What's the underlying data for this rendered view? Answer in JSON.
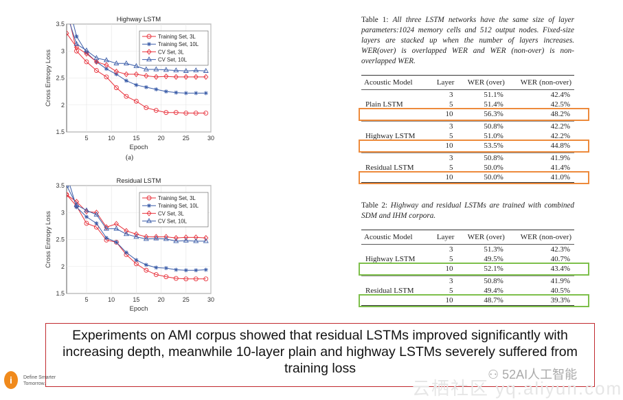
{
  "chart_data": [
    {
      "type": "line",
      "title": "Highway LSTM",
      "xlabel": "Epoch",
      "ylabel": "Cross Entropy Loss",
      "xlim": [
        1,
        30
      ],
      "ylim": [
        1.5,
        3.5
      ],
      "xticks": [
        5,
        10,
        15,
        20,
        25,
        30
      ],
      "yticks": [
        1.5,
        2,
        2.5,
        3,
        3.5
      ],
      "grid": true,
      "legend": "top-right",
      "x": [
        1,
        3,
        5,
        7,
        9,
        11,
        13,
        15,
        17,
        19,
        21,
        23,
        25,
        27,
        29
      ],
      "series": [
        {
          "name": "Training Set, 3L",
          "color": "#e8303a",
          "marker": "circle",
          "values": [
            3.8,
            3.0,
            2.8,
            2.64,
            2.52,
            2.32,
            2.16,
            2.07,
            1.95,
            1.9,
            1.86,
            1.86,
            1.85,
            1.85,
            1.85
          ]
        },
        {
          "name": "Training Set, 10L",
          "color": "#3a5ca8",
          "marker": "star",
          "values": [
            4.0,
            3.27,
            2.97,
            2.8,
            2.67,
            2.57,
            2.45,
            2.37,
            2.33,
            2.29,
            2.25,
            2.23,
            2.22,
            2.22,
            2.22
          ]
        },
        {
          "name": "CV Set, 3L",
          "color": "#e8303a",
          "marker": "diamond",
          "values": [
            3.33,
            3.07,
            2.95,
            2.8,
            2.74,
            2.62,
            2.57,
            2.57,
            2.54,
            2.52,
            2.53,
            2.52,
            2.52,
            2.52,
            2.52
          ]
        },
        {
          "name": "CV Set, 10L",
          "color": "#3a5ca8",
          "marker": "triangle",
          "values": [
            3.7,
            3.13,
            3.01,
            2.87,
            2.83,
            2.77,
            2.77,
            2.72,
            2.66,
            2.66,
            2.65,
            2.64,
            2.63,
            2.64,
            2.63
          ]
        }
      ],
      "caption": "(a)"
    },
    {
      "type": "line",
      "title": "Residual LSTM",
      "xlabel": "Epoch",
      "ylabel": "Cross Entropy Loss",
      "xlim": [
        1,
        30
      ],
      "ylim": [
        1.5,
        3.5
      ],
      "xticks": [
        5,
        10,
        15,
        20,
        25,
        30
      ],
      "yticks": [
        1.5,
        2,
        2.5,
        3,
        3.5
      ],
      "grid": true,
      "legend": "top-right",
      "x": [
        1,
        3,
        5,
        7,
        9,
        11,
        13,
        15,
        17,
        19,
        21,
        23,
        25,
        27,
        29
      ],
      "series": [
        {
          "name": "Training Set, 3L",
          "color": "#e8303a",
          "marker": "circle",
          "values": [
            3.33,
            3.12,
            2.8,
            2.73,
            2.49,
            2.45,
            2.22,
            2.05,
            1.93,
            1.85,
            1.81,
            1.78,
            1.77,
            1.77,
            1.77
          ]
        },
        {
          "name": "Training Set, 10L",
          "color": "#3a5ca8",
          "marker": "star",
          "values": [
            3.7,
            3.1,
            2.92,
            2.8,
            2.53,
            2.45,
            2.26,
            2.12,
            2.03,
            1.98,
            1.97,
            1.94,
            1.93,
            1.93,
            1.94
          ]
        },
        {
          "name": "CV Set, 3L",
          "color": "#e8303a",
          "marker": "diamond",
          "values": [
            3.33,
            3.2,
            3.02,
            3.0,
            2.73,
            2.79,
            2.66,
            2.6,
            2.55,
            2.55,
            2.55,
            2.53,
            2.54,
            2.54,
            2.53
          ]
        },
        {
          "name": "CV Set, 10L",
          "color": "#3a5ca8",
          "marker": "triangle",
          "values": [
            3.5,
            3.14,
            3.04,
            2.96,
            2.7,
            2.7,
            2.6,
            2.55,
            2.51,
            2.52,
            2.51,
            2.47,
            2.48,
            2.47,
            2.47
          ]
        }
      ]
    }
  ],
  "table1": {
    "label": "Table 1:",
    "caption": "All three LSTM networks have the same size of layer parameters:1024 memory cells and 512 output nodes. Fixed-size layers are stacked up when the number of layers increases. WER(over) is overlapped WER and WER (non-over) is non-overlapped WER.",
    "headers": [
      "Acoustic Model",
      "Layer",
      "WER (over)",
      "WER (non-over)"
    ],
    "groups": [
      {
        "model": "Plain LSTM",
        "rows": [
          [
            "3",
            "51.1%",
            "42.4%"
          ],
          [
            "5",
            "51.4%",
            "42.5%"
          ],
          [
            "10",
            "56.3%",
            "48.2%"
          ]
        ]
      },
      {
        "model": "Highway LSTM",
        "rows": [
          [
            "3",
            "50.8%",
            "42.2%"
          ],
          [
            "5",
            "51.0%",
            "42.2%"
          ],
          [
            "10",
            "53.5%",
            "44.8%"
          ]
        ]
      },
      {
        "model": "Residual LSTM",
        "rows": [
          [
            "3",
            "50.8%",
            "41.9%"
          ],
          [
            "5",
            "50.0%",
            "41.4%"
          ],
          [
            "10",
            "50.0%",
            "41.0%"
          ]
        ]
      }
    ],
    "highlight_color": "#ed8a3b"
  },
  "table2": {
    "label": "Table 2:",
    "caption": "Highway and residual LSTMs are trained with combined SDM and IHM corpora.",
    "headers": [
      "Acoustic Model",
      "Layer",
      "WER (over)",
      "WER (non-over)"
    ],
    "groups": [
      {
        "model": "Highway LSTM",
        "rows": [
          [
            "3",
            "51.3%",
            "42.3%"
          ],
          [
            "5",
            "49.5%",
            "40.7%"
          ],
          [
            "10",
            "52.1%",
            "43.4%"
          ]
        ]
      },
      {
        "model": "Residual LSTM",
        "rows": [
          [
            "3",
            "50.8%",
            "41.9%"
          ],
          [
            "5",
            "49.4%",
            "40.5%"
          ],
          [
            "10",
            "48.7%",
            "39.3%"
          ]
        ]
      }
    ],
    "highlight_color": "#7dbf4a"
  },
  "summary": "Experiments on AMI corpus showed that residual LSTMs improved significantly with increasing depth, meanwhile 10-layer plain and highway LSTMs severely suffered from training loss",
  "footer": {
    "tagline_1": "Define Smarter",
    "tagline_2": "Tomorrow.",
    "watermark": "52AI人工智能",
    "watermark2": "云栖社区 yq.aliyun.com"
  }
}
